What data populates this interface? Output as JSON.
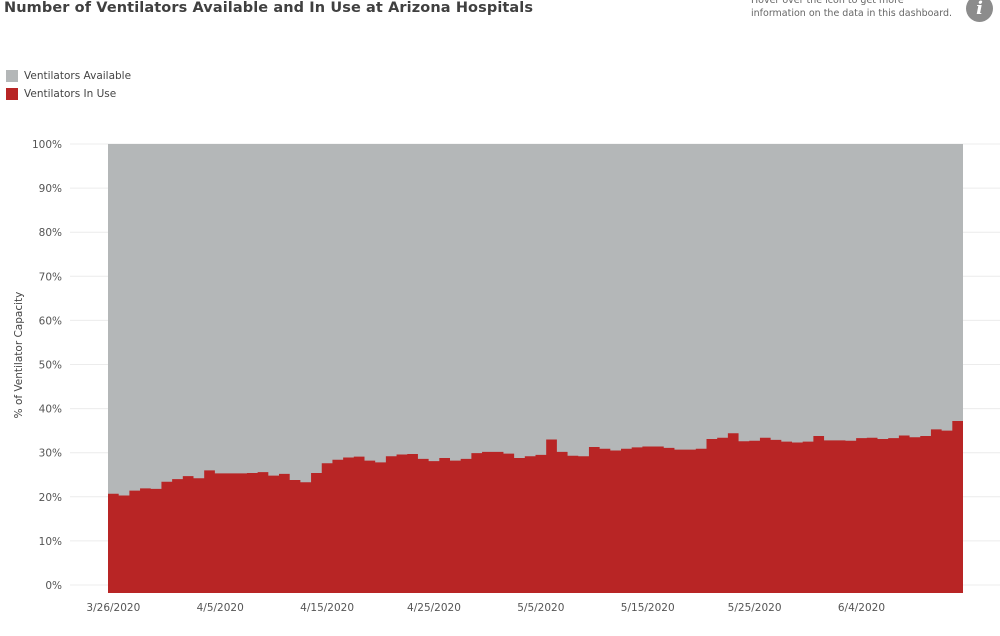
{
  "header": {
    "title": "Number of Ventilators Available and In Use at Arizona Hospitals",
    "info_text": "Hover over the icon to get more information on the data in this dashboard.",
    "info_icon_glyph": "i",
    "info_icon": "info-icon"
  },
  "legend": {
    "items": [
      {
        "label": "Ventilators Available",
        "color": "#b4b7b8"
      },
      {
        "label": "Ventilators In Use",
        "color": "#b82525"
      }
    ]
  },
  "chart_data": {
    "type": "area",
    "title": "Number of Ventilators Available and In Use at Arizona Hospitals",
    "xlabel": "",
    "ylabel": "% of Ventilator Capacity",
    "ylim": [
      0,
      100
    ],
    "y_ticks": [
      "0%",
      "10%",
      "20%",
      "30%",
      "40%",
      "50%",
      "60%",
      "70%",
      "80%",
      "90%",
      "100%"
    ],
    "x_ticks": [
      "3/26/2020",
      "4/5/2020",
      "4/15/2020",
      "4/25/2020",
      "5/5/2020",
      "5/15/2020",
      "5/25/2020",
      "6/4/2020"
    ],
    "x_start": "3/26/2020",
    "x_end": "6/11/2020",
    "stacked_percent": true,
    "grid": true,
    "legend_position": "top-left",
    "series": [
      {
        "name": "Ventilators In Use",
        "color": "#b82525",
        "values": [
          20.7,
          20.3,
          21.4,
          21.9,
          21.8,
          23.4,
          24.0,
          24.7,
          24.2,
          26.0,
          25.3,
          25.3,
          25.3,
          25.4,
          25.6,
          24.8,
          25.2,
          23.8,
          23.3,
          25.4,
          27.6,
          28.4,
          28.9,
          29.1,
          28.2,
          27.8,
          29.2,
          29.6,
          29.7,
          28.6,
          28.1,
          28.8,
          28.2,
          28.6,
          29.9,
          30.2,
          30.2,
          29.8,
          28.8,
          29.2,
          29.5,
          33.0,
          30.2,
          29.3,
          29.2,
          31.3,
          30.9,
          30.5,
          30.9,
          31.2,
          31.4,
          31.4,
          31.1,
          30.7,
          30.7,
          30.9,
          33.1,
          33.4,
          34.4,
          32.6,
          32.7,
          33.4,
          32.9,
          32.5,
          32.3,
          32.5,
          33.8,
          32.8,
          32.8,
          32.7,
          33.3,
          33.4,
          33.1,
          33.3,
          33.9,
          33.5,
          33.8,
          35.3,
          35.0,
          37.2
        ]
      },
      {
        "name": "Ventilators Available",
        "color": "#b4b7b8",
        "values": "remainder to 100%"
      }
    ]
  }
}
